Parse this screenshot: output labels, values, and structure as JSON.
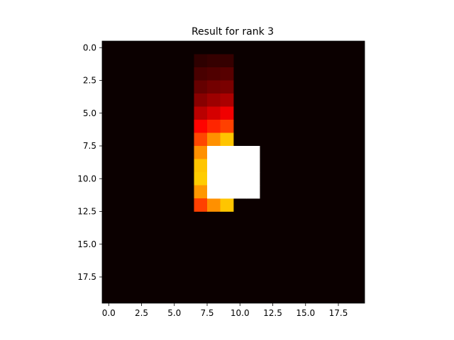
{
  "chart_data": {
    "type": "heatmap",
    "title": "Result for rank 3",
    "xlabel": "",
    "ylabel": "",
    "shape": [
      20,
      20
    ],
    "xlim": [
      -0.5,
      19.5
    ],
    "ylim": [
      19.5,
      -0.5
    ],
    "x_ticks": [
      0.0,
      2.5,
      5.0,
      7.5,
      10.0,
      12.5,
      15.0,
      17.5
    ],
    "x_tick_labels": [
      "0.0",
      "2.5",
      "5.0",
      "7.5",
      "10.0",
      "12.5",
      "15.0",
      "17.5"
    ],
    "y_ticks": [
      0.0,
      2.5,
      5.0,
      7.5,
      10.0,
      12.5,
      15.0,
      17.5
    ],
    "y_tick_labels": [
      "0.0",
      "2.5",
      "5.0",
      "7.5",
      "10.0",
      "12.5",
      "15.0",
      "17.5"
    ],
    "colormap": "hot",
    "vmin": 0,
    "vmax": 1,
    "grid": false,
    "background_value": 0.0,
    "cells": [
      {
        "row": 1,
        "col": 7,
        "value": 0.05
      },
      {
        "row": 1,
        "col": 8,
        "value": 0.06
      },
      {
        "row": 1,
        "col": 9,
        "value": 0.06
      },
      {
        "row": 2,
        "col": 7,
        "value": 0.09
      },
      {
        "row": 2,
        "col": 8,
        "value": 0.1
      },
      {
        "row": 2,
        "col": 9,
        "value": 0.11
      },
      {
        "row": 3,
        "col": 7,
        "value": 0.13
      },
      {
        "row": 3,
        "col": 8,
        "value": 0.15
      },
      {
        "row": 3,
        "col": 9,
        "value": 0.16
      },
      {
        "row": 4,
        "col": 7,
        "value": 0.18
      },
      {
        "row": 4,
        "col": 8,
        "value": 0.21
      },
      {
        "row": 4,
        "col": 9,
        "value": 0.23
      },
      {
        "row": 5,
        "col": 7,
        "value": 0.25
      },
      {
        "row": 5,
        "col": 8,
        "value": 0.29
      },
      {
        "row": 5,
        "col": 9,
        "value": 0.33
      },
      {
        "row": 6,
        "col": 7,
        "value": 0.37
      },
      {
        "row": 6,
        "col": 8,
        "value": 0.42
      },
      {
        "row": 6,
        "col": 9,
        "value": 0.46
      },
      {
        "row": 7,
        "col": 7,
        "value": 0.47
      },
      {
        "row": 7,
        "col": 8,
        "value": 0.58
      },
      {
        "row": 7,
        "col": 9,
        "value": 0.66
      },
      {
        "row": 8,
        "col": 7,
        "value": 0.58
      },
      {
        "row": 9,
        "col": 7,
        "value": 0.66
      },
      {
        "row": 10,
        "col": 7,
        "value": 0.67
      },
      {
        "row": 11,
        "col": 7,
        "value": 0.59
      },
      {
        "row": 12,
        "col": 7,
        "value": 0.46
      },
      {
        "row": 12,
        "col": 8,
        "value": 0.58
      },
      {
        "row": 12,
        "col": 9,
        "value": 0.66
      },
      {
        "row": 8,
        "col": 8,
        "value": 1.0
      },
      {
        "row": 8,
        "col": 9,
        "value": 1.0
      },
      {
        "row": 8,
        "col": 10,
        "value": 1.0
      },
      {
        "row": 8,
        "col": 11,
        "value": 1.0
      },
      {
        "row": 9,
        "col": 8,
        "value": 1.0
      },
      {
        "row": 9,
        "col": 9,
        "value": 1.0
      },
      {
        "row": 9,
        "col": 10,
        "value": 1.0
      },
      {
        "row": 9,
        "col": 11,
        "value": 1.0
      },
      {
        "row": 10,
        "col": 8,
        "value": 1.0
      },
      {
        "row": 10,
        "col": 9,
        "value": 1.0
      },
      {
        "row": 10,
        "col": 10,
        "value": 1.0
      },
      {
        "row": 10,
        "col": 11,
        "value": 1.0
      },
      {
        "row": 11,
        "col": 8,
        "value": 1.0
      },
      {
        "row": 11,
        "col": 9,
        "value": 1.0
      },
      {
        "row": 11,
        "col": 10,
        "value": 1.0
      },
      {
        "row": 11,
        "col": 11,
        "value": 1.0
      }
    ]
  }
}
